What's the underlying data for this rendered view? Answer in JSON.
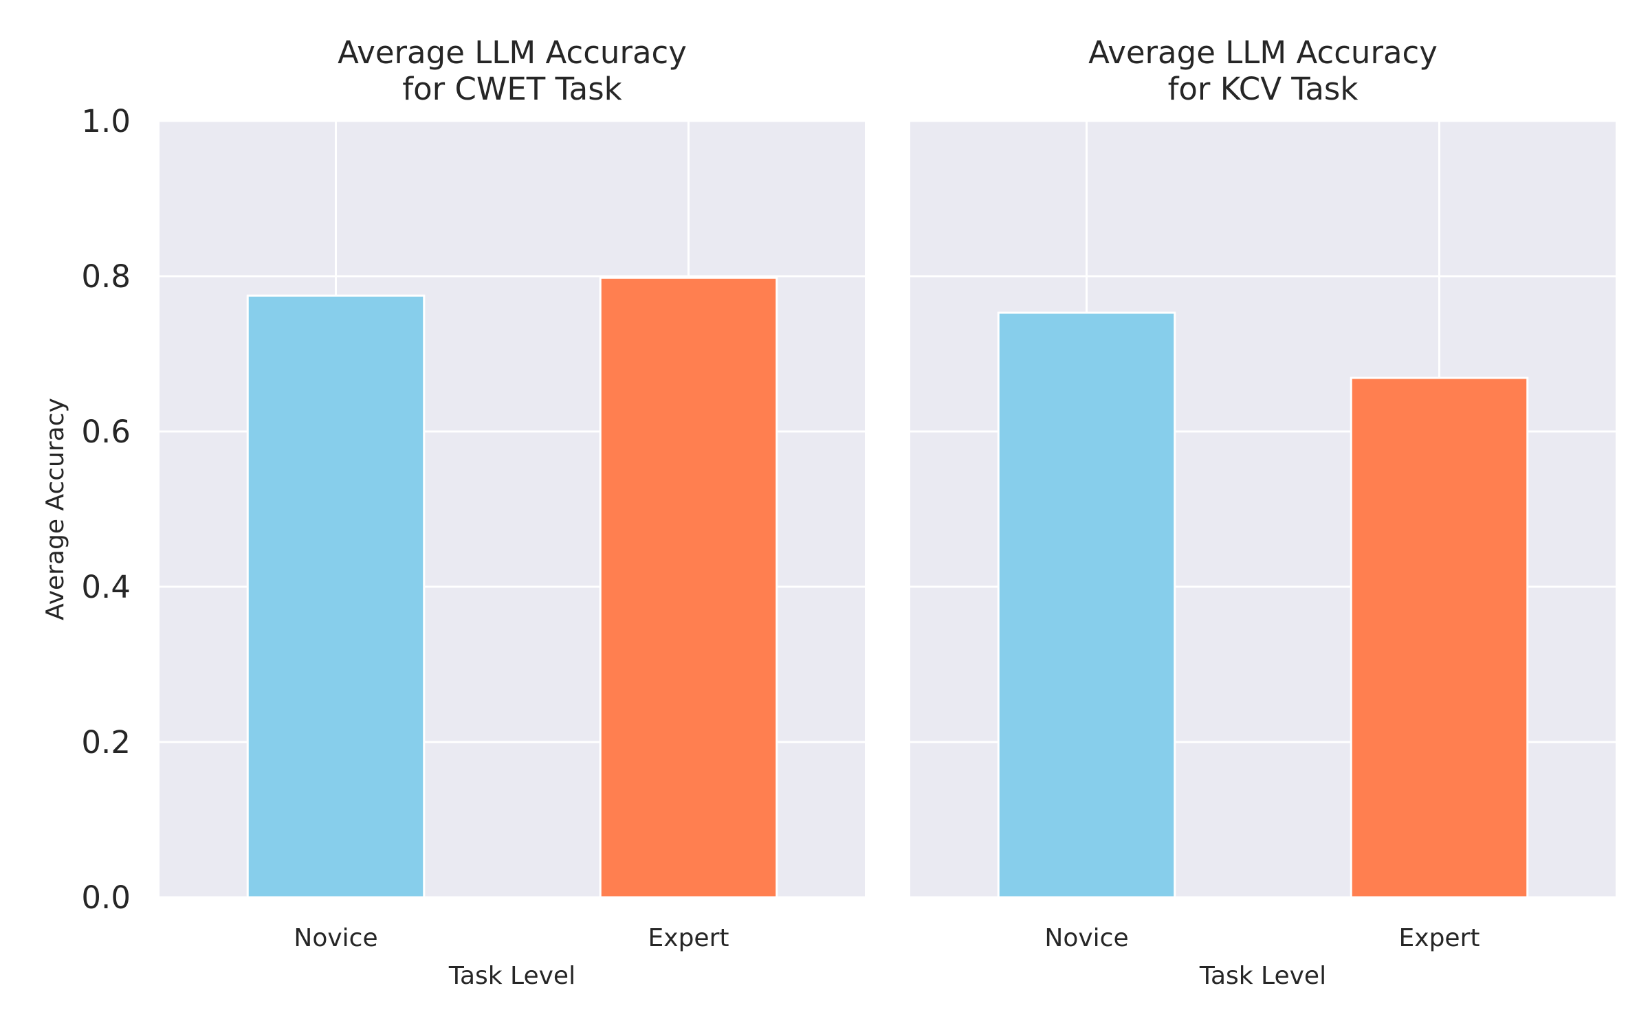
{
  "colors": {
    "novice": "#87CEEB",
    "expert": "#FF7F50",
    "axes_bg": "#EAEAF2",
    "grid": "#FFFFFF",
    "text": "#262626"
  },
  "chart_data": [
    {
      "type": "bar",
      "title_lines": [
        "Average LLM Accuracy",
        "for CWET Task"
      ],
      "categories": [
        "Novice",
        "Expert"
      ],
      "values": [
        0.775,
        0.798
      ],
      "xlabel": "Task Level",
      "ylabel": "Average Accuracy",
      "ylim": [
        0,
        1.0
      ],
      "yticks": [
        "0.0",
        "0.2",
        "0.4",
        "0.6",
        "0.8",
        "1.0"
      ],
      "grid": true
    },
    {
      "type": "bar",
      "title_lines": [
        "Average LLM Accuracy",
        "for KCV Task"
      ],
      "categories": [
        "Novice",
        "Expert"
      ],
      "values": [
        0.753,
        0.669
      ],
      "xlabel": "Task Level",
      "ylabel": "",
      "ylim": [
        0,
        1.0
      ],
      "yticks": [],
      "grid": true
    }
  ]
}
